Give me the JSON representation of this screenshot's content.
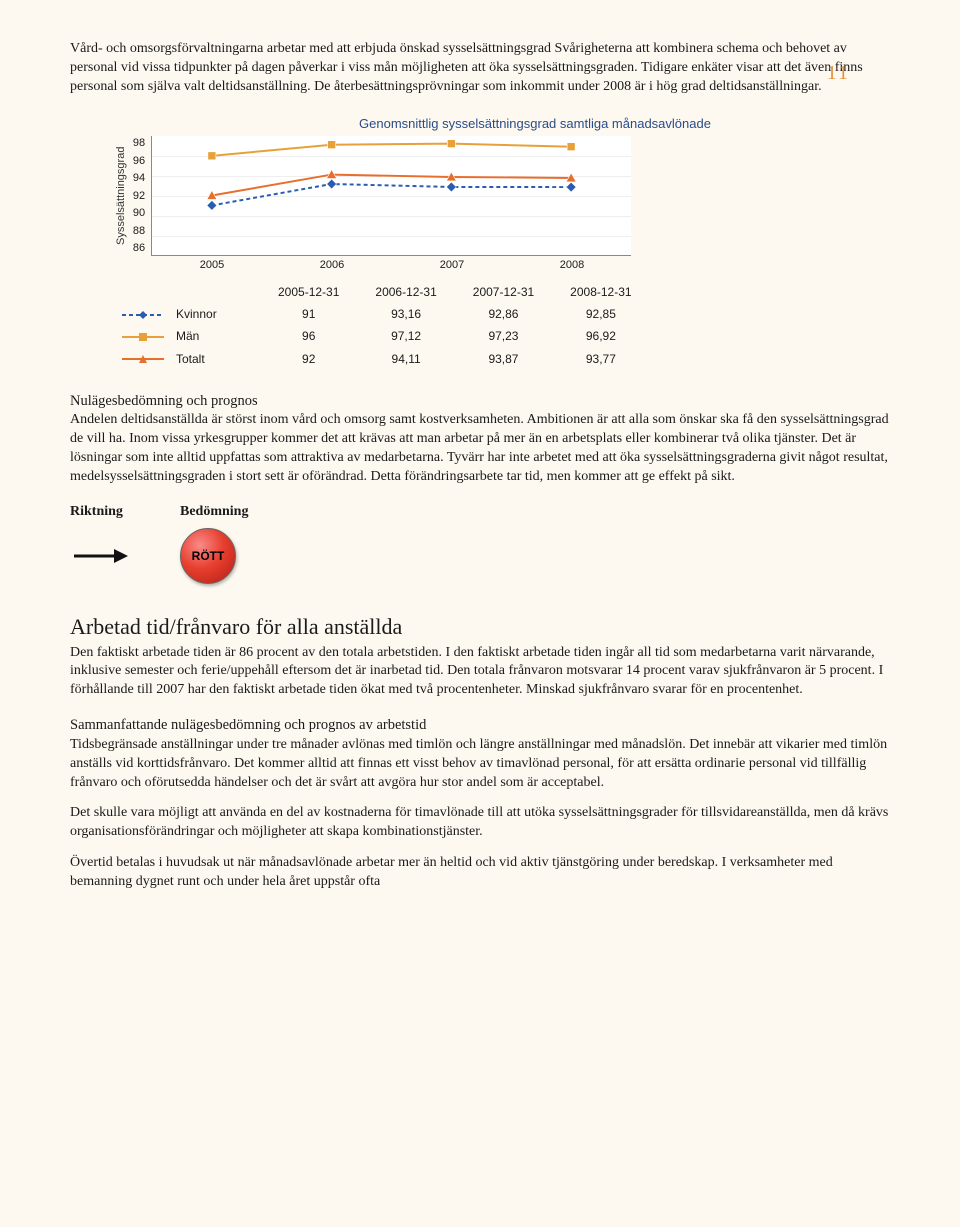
{
  "page_number": "11",
  "intro_para": "Vård- och omsorgsförvaltningarna arbetar med att erbjuda önskad sysselsättningsgrad Svårigheterna att kombinera schema och behovet av personal vid vissa tidpunkter på dagen påverkar i viss mån möjligheten att öka sysselsättningsgraden. Tidigare enkäter visar att det även finns personal som själva valt deltidsanställning. De återbesättningsprövningar som inkommit under 2008 är i hög grad deltidsanställningar.",
  "chart": {
    "type": "line",
    "title": "Genomsnittlig sysselsättningsgrad samtliga månadsavlönade",
    "ylabel": "Sysselsättningsgrad",
    "ylim": [
      86,
      98
    ],
    "ytick_step": 2,
    "yticks": [
      "98",
      "96",
      "94",
      "92",
      "90",
      "88",
      "86"
    ],
    "x_categories": [
      "2005",
      "2006",
      "2007",
      "2008"
    ],
    "background_color": "#ffffff",
    "grid_color": "#eeeeee",
    "title_color": "#2a4c8a",
    "title_fontsize": 13,
    "label_fontsize": 11,
    "series": [
      {
        "name": "Kvinnor",
        "color": "#2a5db0",
        "marker": "diamond",
        "dash": "4 3",
        "values": [
          91,
          93.16,
          92.86,
          92.85
        ]
      },
      {
        "name": "Män",
        "color": "#e8a03a",
        "marker": "square",
        "dash": "none",
        "values": [
          96,
          97.12,
          97.23,
          96.92
        ]
      },
      {
        "name": "Totalt",
        "color": "#e86e2c",
        "marker": "triangle",
        "dash": "none",
        "values": [
          92,
          94.11,
          93.87,
          93.77
        ]
      }
    ]
  },
  "table": {
    "header": [
      "",
      "2005-12-31",
      "2006-12-31",
      "2007-12-31",
      "2008-12-31"
    ],
    "rows": [
      {
        "label": "Kvinnor",
        "series_idx": 0,
        "cells": [
          "91",
          "93,16",
          "92,86",
          "92,85"
        ]
      },
      {
        "label": "Män",
        "series_idx": 1,
        "cells": [
          "96",
          "97,12",
          "97,23",
          "96,92"
        ]
      },
      {
        "label": "Totalt",
        "series_idx": 2,
        "cells": [
          "92",
          "94,11",
          "93,87",
          "93,77"
        ]
      }
    ]
  },
  "nulages_heading": "Nulägesbedömning och prognos",
  "nulages_para": "Andelen deltidsanställda är störst inom vård och omsorg samt kostverksamheten. Ambitionen är att alla som önskar ska få den sysselsättningsgrad de vill ha. Inom vissa yrkesgrupper kommer det att krävas att man arbetar på mer än en arbetsplats eller kombinerar två olika tjänster. Det är lösningar som inte alltid uppfattas som attraktiva av medarbetarna. Tyvärr har inte arbetet med att öka sysselsättningsgraderna givit något resultat, medelsysselsättningsgraden i stort sett är oförändrad. Detta förändringsarbete tar tid, men kommer att ge effekt på sikt.",
  "cols": {
    "riktning": "Riktning",
    "bedomning": "Bedömning"
  },
  "badge_label": "RÖTT",
  "section2_heading": "Arbetad tid/frånvaro för alla anställda",
  "section2_para": "Den faktiskt arbetade tiden är 86 procent av den totala arbetstiden. I den faktiskt arbetade tiden ingår all tid som medarbetarna varit närvarande, inklusive semester och ferie/uppehåll eftersom det är inarbetad tid. Den totala frånvaron motsvarar 14 procent varav sjukfrånvaron är 5 procent. I förhållande till 2007 har den faktiskt arbetade tiden ökat med två procentenheter. Minskad sjukfrånvaro svarar för en procentenhet.",
  "summary_heading": "Sammanfattande nulägesbedömning och prognos av arbetstid",
  "summary_para1": "Tidsbegränsade anställningar under tre månader avlönas med timlön och längre anställningar med månadslön. Det innebär att vikarier med timlön anställs vid korttidsfrånvaro. Det kommer alltid att finnas ett visst behov av timavlönad personal, för att ersätta ordinarie personal vid tillfällig frånvaro och oförutsedda händelser och det är svårt att avgöra hur stor andel som är acceptabel.",
  "summary_para2": "Det skulle vara möjligt att använda en del av kostnaderna för timavlönade till att utöka sysselsättningsgrader för tillsvidareanställda, men då krävs organisationsförändringar och möjligheter att skapa kombinationstjänster.",
  "summary_para3": "Övertid betalas i huvudsak ut när månadsavlönade arbetar mer än heltid och vid aktiv tjänstgöring under beredskap. I verksamheter med bemanning dygnet runt och under hela året uppstår ofta"
}
